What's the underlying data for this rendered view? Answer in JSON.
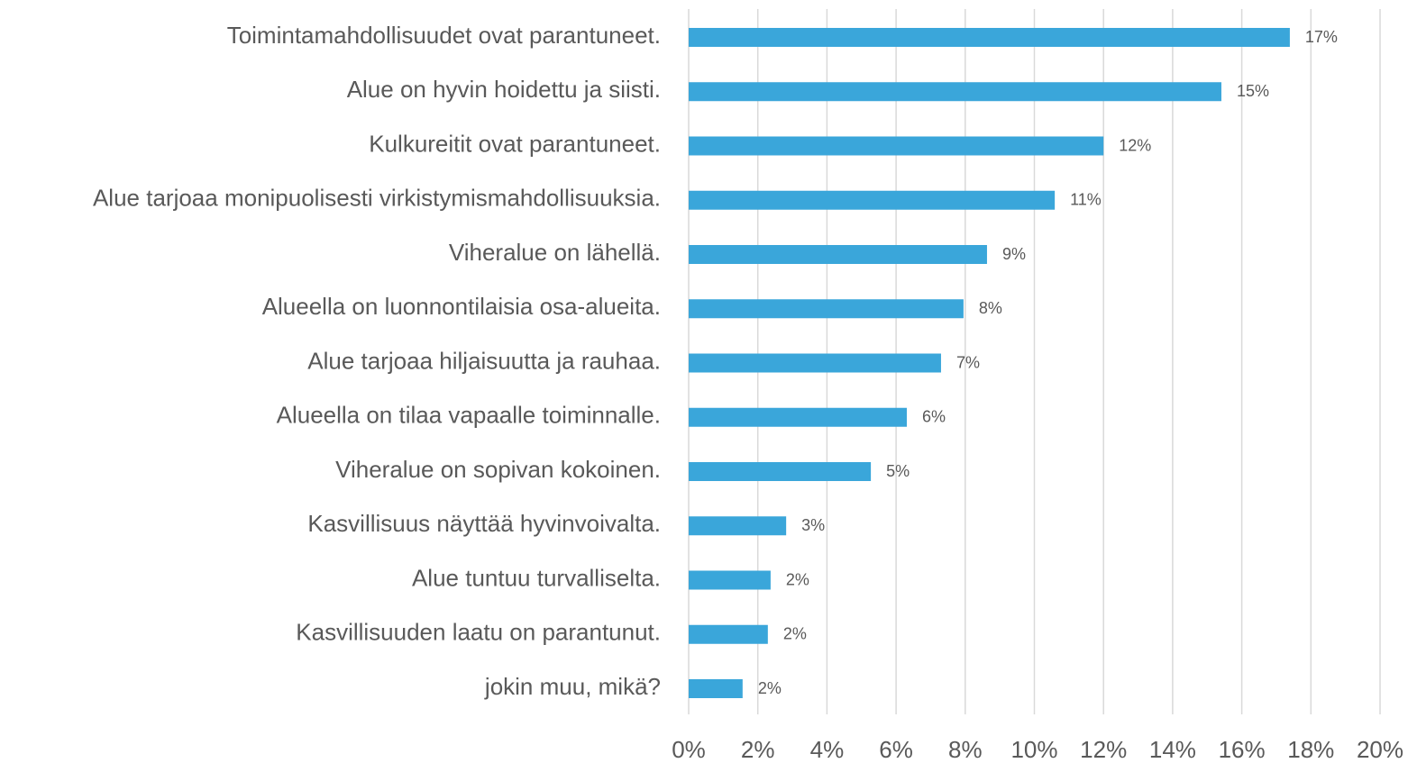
{
  "chart_data": {
    "type": "bar",
    "orientation": "horizontal",
    "categories": [
      "Toimintamahdollisuudet ovat parantuneet.",
      "Alue on hyvin hoidettu ja siisti.",
      "Kulkureitit ovat parantuneet.",
      "Alue tarjoaa monipuolisesti virkistymismahdollisuuksia.",
      "Viheralue on lähellä.",
      "Alueella on luonnontilaisia osa-alueita.",
      "Alue tarjoaa hiljaisuutta ja rauhaa.",
      "Alueella on tilaa vapaalle toiminnalle.",
      "Viheralue on sopivan kokoinen.",
      "Kasvillisuus näyttää hyvinvoivalta.",
      "Alue tuntuu turvalliselta.",
      "Kasvillisuuden laatu on parantunut.",
      "jokin muu, mikä?"
    ],
    "values": [
      17.39,
      15.41,
      12.0,
      10.59,
      8.63,
      7.95,
      7.3,
      6.31,
      5.27,
      2.82,
      2.37,
      2.29,
      1.56
    ],
    "value_labels": [
      "17%",
      "15%",
      "12%",
      "11%",
      "9%",
      "8%",
      "7%",
      "6%",
      "5%",
      "3%",
      "2%",
      "2%",
      "2%"
    ],
    "color": "#3aa6da",
    "xlim": [
      0,
      20
    ],
    "xticks": [
      {
        "value": 0,
        "label": "0%"
      },
      {
        "value": 2,
        "label": "2%"
      },
      {
        "value": 4,
        "label": "4%"
      },
      {
        "value": 6,
        "label": "6%"
      },
      {
        "value": 8,
        "label": "8%"
      },
      {
        "value": 10,
        "label": "10%"
      },
      {
        "value": 12,
        "label": "12%"
      },
      {
        "value": 14,
        "label": "14%"
      },
      {
        "value": 16,
        "label": "16%"
      },
      {
        "value": 18,
        "label": "18%"
      },
      {
        "value": 20,
        "label": "20%"
      }
    ],
    "grid": true
  }
}
